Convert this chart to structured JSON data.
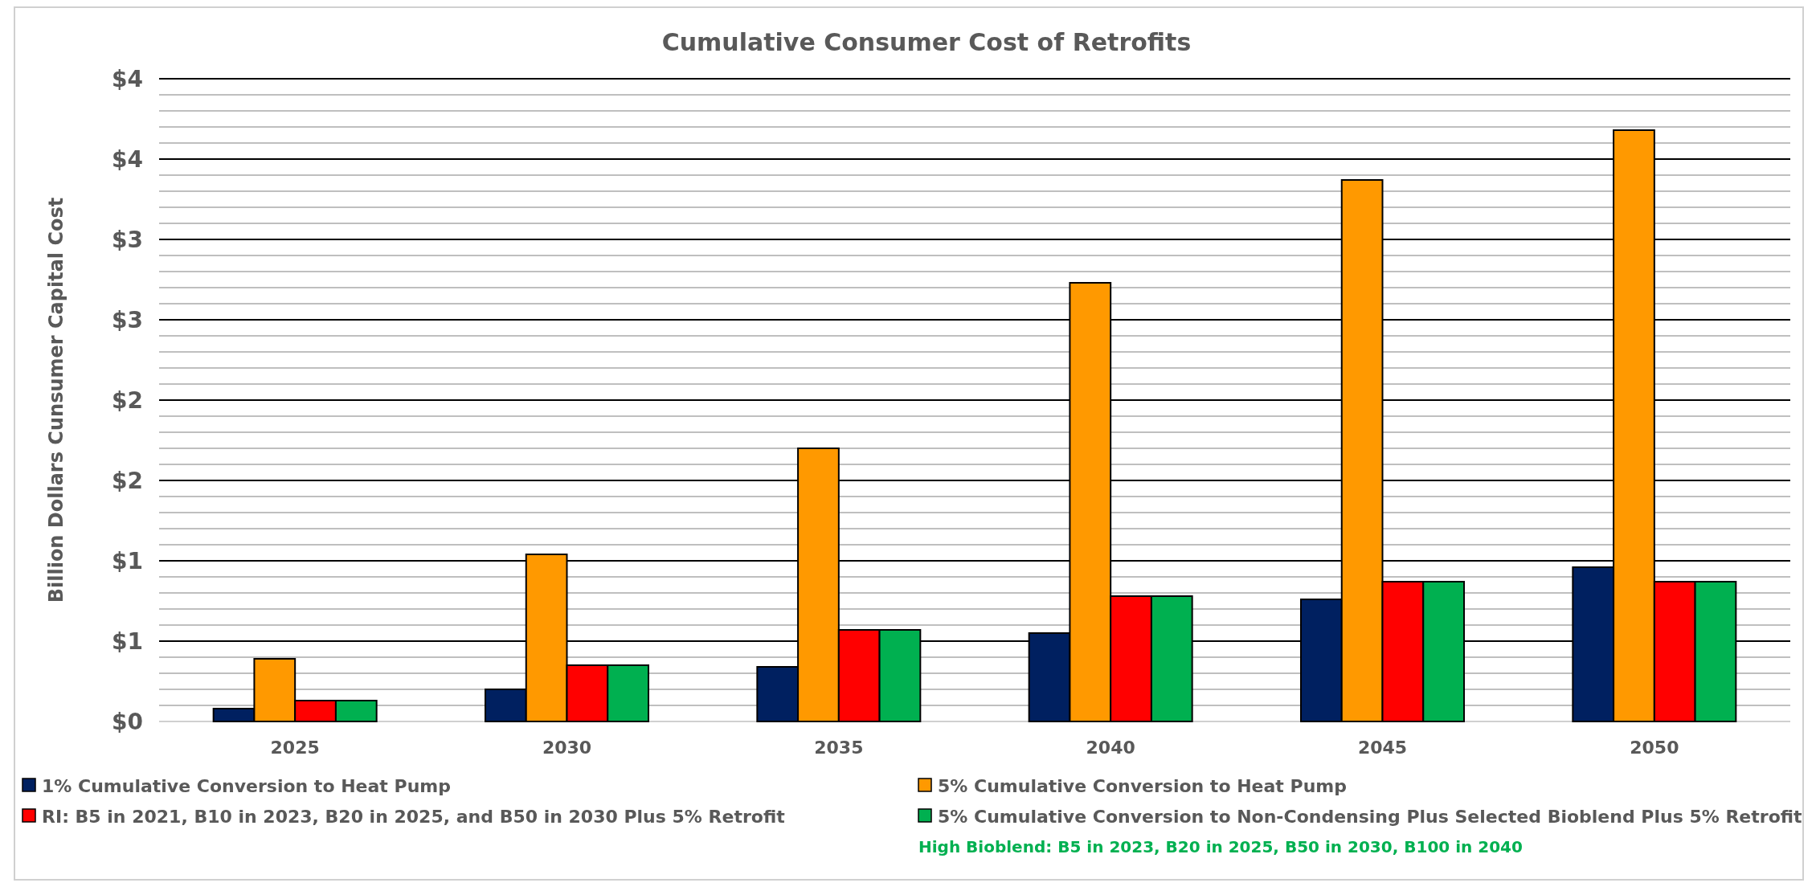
{
  "chart_data": {
    "type": "bar",
    "title": "Cumulative Consumer Cost of Retrofits",
    "ylabel": "Billion Dollars Cunsumer Capital Cost",
    "categories": [
      "2025",
      "2030",
      "2035",
      "2040",
      "2045",
      "2050"
    ],
    "series": [
      {
        "name": "1% Cumulative Conversion to Heat Pump",
        "color": "#002060",
        "values": [
          0.08,
          0.2,
          0.34,
          0.55,
          0.76,
          0.96
        ]
      },
      {
        "name": "5% Cumulative Conversion to Heat Pump",
        "color": "#ff9900",
        "values": [
          0.39,
          1.04,
          1.7,
          2.73,
          3.37,
          3.68
        ]
      },
      {
        "name": "RI: B5 in 2021, B10 in 2023, B20 in 2025, and B50 in 2030 Plus 5% Retrofit",
        "color": "#ff0000",
        "values": [
          0.13,
          0.35,
          0.57,
          0.78,
          0.87,
          0.87
        ]
      },
      {
        "name": "5% Cumulative Conversion to Non-Condensing  Plus Selected Bioblend Plus 5% Retrofit",
        "color": "#00b050",
        "values": [
          0.13,
          0.35,
          0.57,
          0.78,
          0.87,
          0.87
        ]
      }
    ],
    "ylim": [
      0,
      4
    ],
    "yticks": [
      {
        "value": 0,
        "label": "$0"
      },
      {
        "value": 0.1,
        "label": null
      },
      {
        "value": 0.2,
        "label": null
      },
      {
        "value": 0.3,
        "label": null
      },
      {
        "value": 0.4,
        "label": null
      },
      {
        "value": 0.5,
        "label": "$1"
      },
      {
        "value": 0.6,
        "label": null
      },
      {
        "value": 0.7,
        "label": null
      },
      {
        "value": 0.8,
        "label": null
      },
      {
        "value": 0.9,
        "label": null
      },
      {
        "value": 1,
        "label": "$1"
      },
      {
        "value": 1.1,
        "label": null
      },
      {
        "value": 1.2,
        "label": null
      },
      {
        "value": 1.3,
        "label": null
      },
      {
        "value": 1.4,
        "label": null
      },
      {
        "value": 1.5,
        "label": "$2"
      },
      {
        "value": 1.6,
        "label": null
      },
      {
        "value": 1.7,
        "label": null
      },
      {
        "value": 1.8,
        "label": null
      },
      {
        "value": 1.9,
        "label": null
      },
      {
        "value": 2,
        "label": "$2"
      },
      {
        "value": 2.1,
        "label": null
      },
      {
        "value": 2.2,
        "label": null
      },
      {
        "value": 2.3,
        "label": null
      },
      {
        "value": 2.4,
        "label": null
      },
      {
        "value": 2.5,
        "label": "$3"
      },
      {
        "value": 2.6,
        "label": null
      },
      {
        "value": 2.7,
        "label": null
      },
      {
        "value": 2.8,
        "label": null
      },
      {
        "value": 2.9,
        "label": null
      },
      {
        "value": 3,
        "label": "$3"
      },
      {
        "value": 3.1,
        "label": null
      },
      {
        "value": 3.2,
        "label": null
      },
      {
        "value": 3.3,
        "label": null
      },
      {
        "value": 3.4,
        "label": null
      },
      {
        "value": 3.5,
        "label": "$4"
      },
      {
        "value": 3.6,
        "label": null
      },
      {
        "value": 3.7,
        "label": null
      },
      {
        "value": 3.8,
        "label": null
      },
      {
        "value": 3.9,
        "label": null
      },
      {
        "value": 4,
        "label": "$4"
      }
    ],
    "grid": "y",
    "legend": "bottom",
    "annotations": [
      "High Bioblend: B5 in 2023, B20 in 2025, B50 in 2030, B100 in 2040"
    ]
  }
}
